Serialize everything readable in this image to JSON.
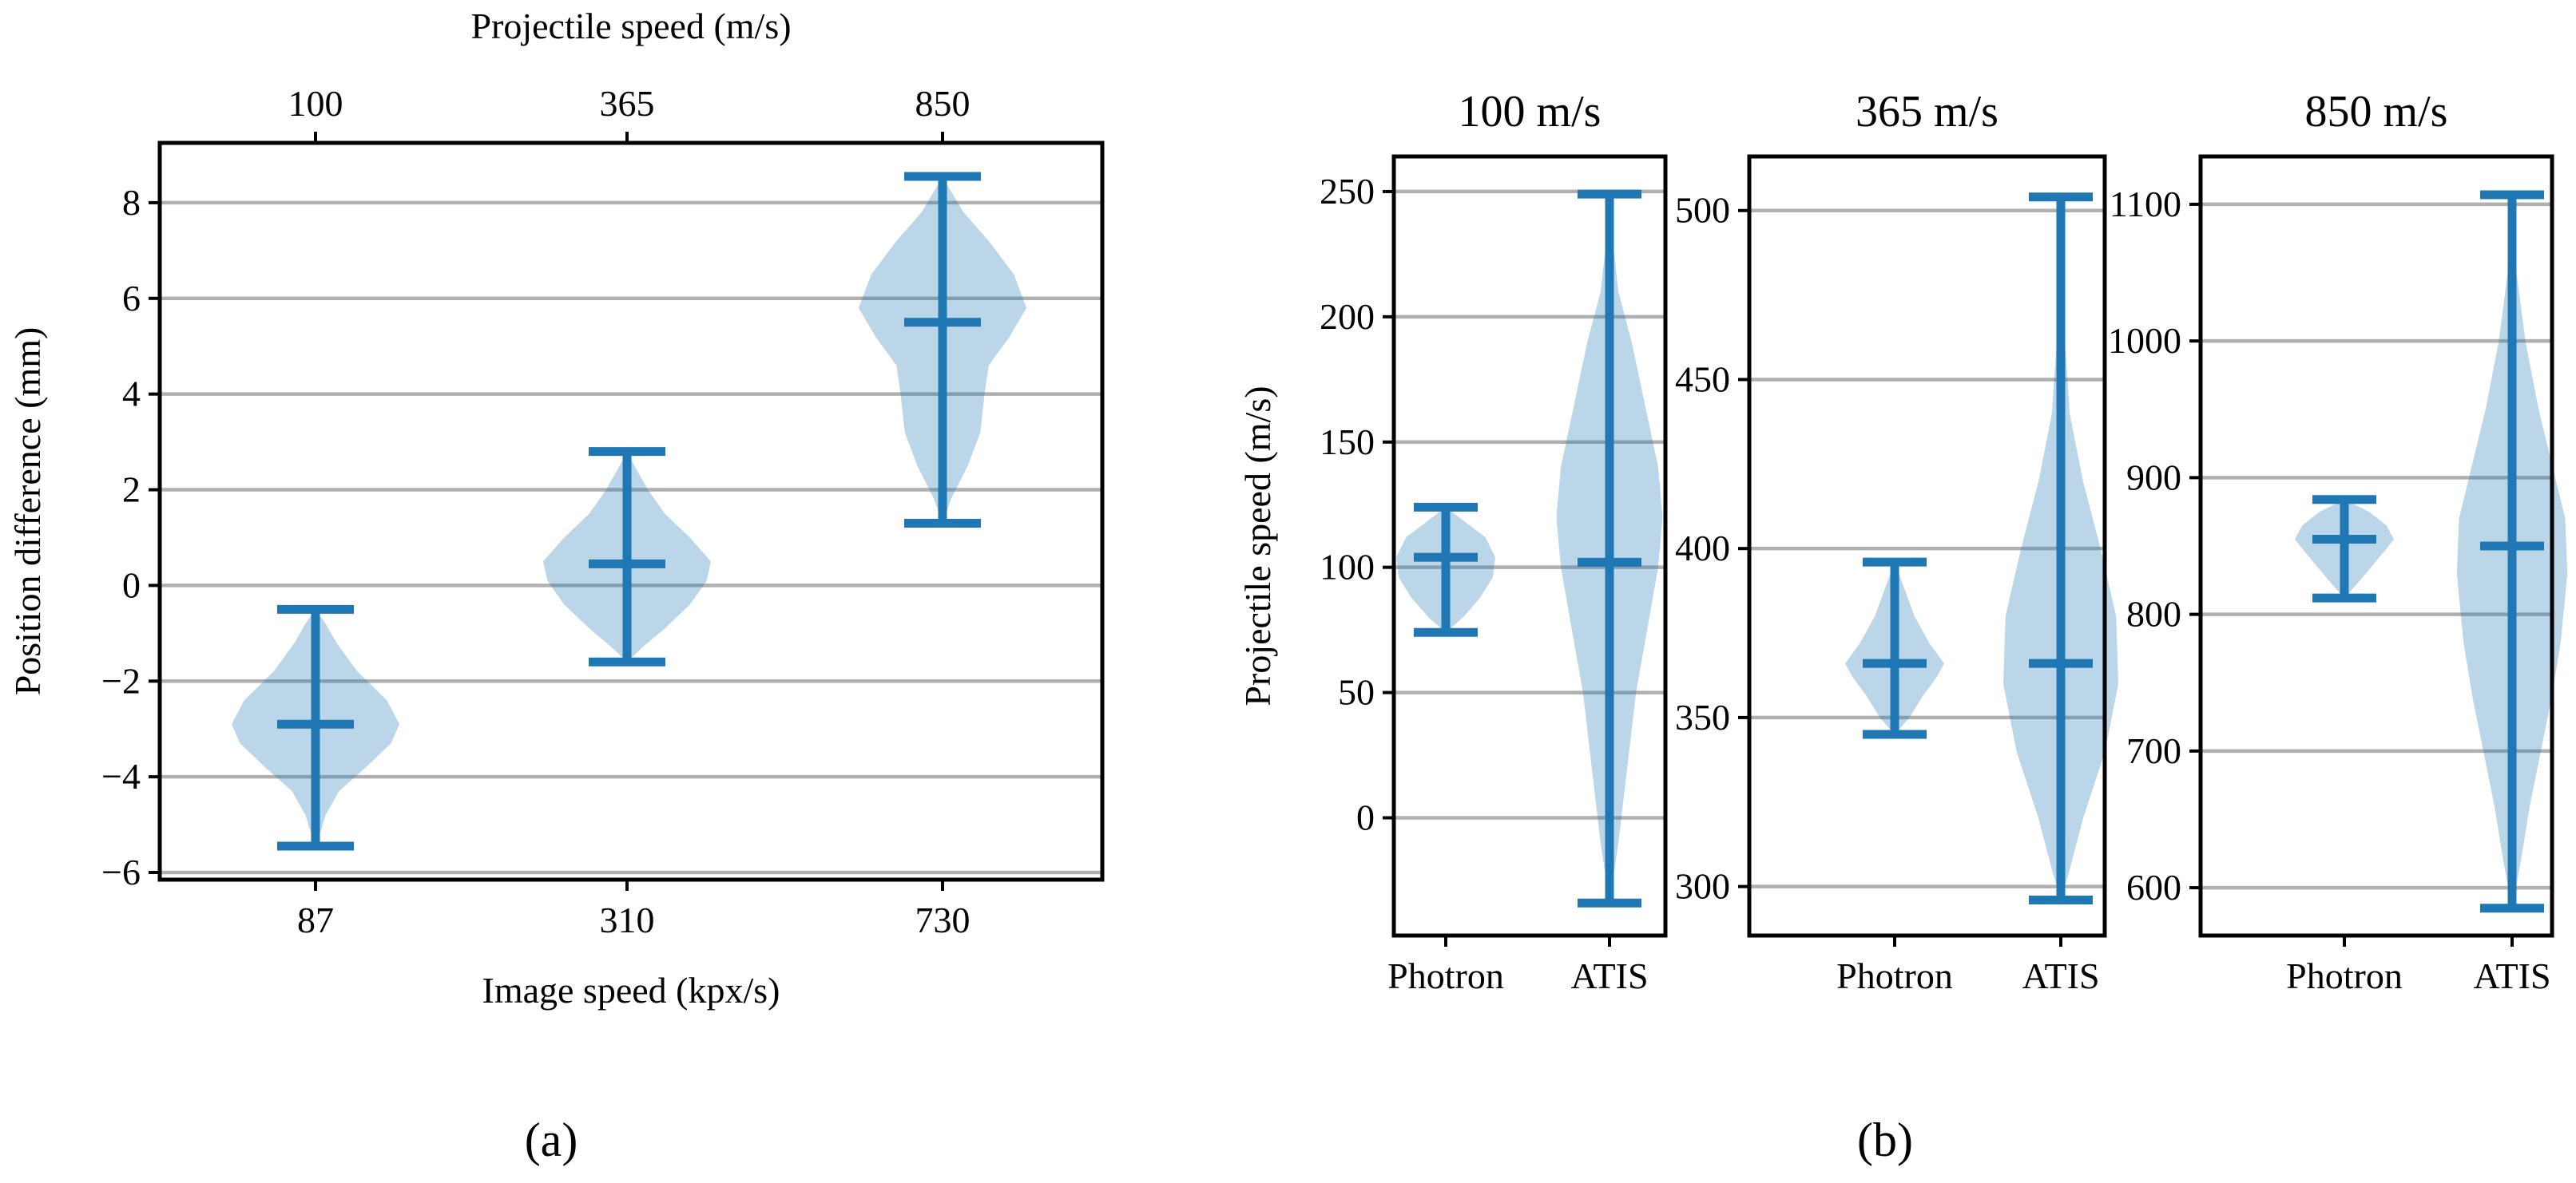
{
  "chart_data": [
    {
      "type": "violin",
      "panel": "a",
      "caption": "(a)",
      "xlabel": "Image speed (kpx/s)",
      "xlabel_top": "Projectile speed (m/s)",
      "ylabel": "Position difference (mm)",
      "ylim": [
        -6.15,
        9.25
      ],
      "yticks": [
        -6,
        -4,
        -2,
        0,
        2,
        4,
        6,
        8
      ],
      "ytick_labels": [
        "−6",
        "−4",
        "−2",
        "0",
        "2",
        "4",
        "6",
        "8"
      ],
      "categories": [
        "87",
        "310",
        "730"
      ],
      "top_categories": [
        "100",
        "365",
        "850"
      ],
      "colors": {
        "violin": "#1f77b4",
        "grid": "#b0b0b0"
      },
      "series": [
        {
          "name": "87",
          "min": -5.45,
          "median": -2.9,
          "max": -0.5,
          "profile": [
            [
              -5.45,
              0.0
            ],
            [
              -5.2,
              0.05
            ],
            [
              -4.8,
              0.12
            ],
            [
              -4.3,
              0.28
            ],
            [
              -3.8,
              0.6
            ],
            [
              -3.3,
              0.9
            ],
            [
              -2.9,
              1.0
            ],
            [
              -2.4,
              0.85
            ],
            [
              -1.8,
              0.5
            ],
            [
              -1.2,
              0.25
            ],
            [
              -0.8,
              0.12
            ],
            [
              -0.5,
              0.0
            ]
          ]
        },
        {
          "name": "310",
          "min": -1.6,
          "median": 0.45,
          "max": 2.8,
          "profile": [
            [
              -1.6,
              0.0
            ],
            [
              -1.3,
              0.18
            ],
            [
              -0.9,
              0.45
            ],
            [
              -0.4,
              0.75
            ],
            [
              0.1,
              0.95
            ],
            [
              0.5,
              1.0
            ],
            [
              1.0,
              0.75
            ],
            [
              1.5,
              0.45
            ],
            [
              2.0,
              0.25
            ],
            [
              2.4,
              0.12
            ],
            [
              2.8,
              0.0
            ]
          ]
        },
        {
          "name": "730",
          "min": 1.3,
          "median": 5.5,
          "max": 8.55,
          "profile": [
            [
              1.3,
              0.0
            ],
            [
              1.8,
              0.1
            ],
            [
              2.5,
              0.3
            ],
            [
              3.2,
              0.45
            ],
            [
              4.0,
              0.5
            ],
            [
              4.6,
              0.55
            ],
            [
              5.2,
              0.8
            ],
            [
              5.8,
              1.0
            ],
            [
              6.5,
              0.85
            ],
            [
              7.2,
              0.55
            ],
            [
              7.8,
              0.25
            ],
            [
              8.3,
              0.08
            ],
            [
              8.55,
              0.0
            ]
          ]
        }
      ]
    },
    {
      "type": "violin",
      "panel": "b1",
      "title": "100 m/s",
      "ylabel": "Projectile speed (m/s)",
      "ylim": [
        -47,
        264
      ],
      "yticks": [
        0,
        50,
        100,
        150,
        200,
        250
      ],
      "ytick_labels": [
        "0",
        "50",
        "100",
        "150",
        "200",
        "250"
      ],
      "categories": [
        "Photron",
        "ATIS"
      ],
      "series": [
        {
          "name": "Photron",
          "min": 74,
          "median": 104,
          "max": 124,
          "profile": [
            [
              74,
              0.0
            ],
            [
              80,
              0.35
            ],
            [
              88,
              0.7
            ],
            [
              96,
              0.95
            ],
            [
              104,
              1.0
            ],
            [
              112,
              0.8
            ],
            [
              118,
              0.4
            ],
            [
              124,
              0.0
            ]
          ]
        },
        {
          "name": "ATIS",
          "min": -34,
          "median": 102,
          "max": 249,
          "profile": [
            [
              -34,
              0.0
            ],
            [
              -10,
              0.04
            ],
            [
              20,
              0.08
            ],
            [
              50,
              0.12
            ],
            [
              75,
              0.17
            ],
            [
              100,
              0.22
            ],
            [
              120,
              0.24
            ],
            [
              140,
              0.22
            ],
            [
              165,
              0.16
            ],
            [
              190,
              0.1
            ],
            [
              210,
              0.04
            ],
            [
              230,
              0.015
            ],
            [
              249,
              0.0
            ]
          ]
        }
      ],
      "violin_scale": 0.28,
      "caption": "(b)"
    },
    {
      "type": "violin",
      "panel": "b2",
      "title": "365 m/s",
      "ylim": [
        285.5,
        516
      ],
      "yticks": [
        300,
        350,
        400,
        450,
        500
      ],
      "ytick_labels": [
        "300",
        "350",
        "400",
        "450",
        "500"
      ],
      "categories": [
        "Photron",
        "ATIS"
      ],
      "series": [
        {
          "name": "Photron",
          "min": 345,
          "median": 366,
          "max": 396,
          "profile": [
            [
              345,
              0.0
            ],
            [
              350,
              0.3
            ],
            [
              356,
              0.55
            ],
            [
              362,
              0.85
            ],
            [
              366,
              1.0
            ],
            [
              372,
              0.7
            ],
            [
              380,
              0.4
            ],
            [
              388,
              0.2
            ],
            [
              396,
              0.0
            ]
          ]
        },
        {
          "name": "ATIS",
          "min": 296,
          "median": 366,
          "max": 504,
          "profile": [
            [
              296,
              0.0
            ],
            [
              305,
              0.04
            ],
            [
              320,
              0.1
            ],
            [
              340,
              0.2
            ],
            [
              360,
              0.26
            ],
            [
              380,
              0.25
            ],
            [
              400,
              0.18
            ],
            [
              420,
              0.1
            ],
            [
              440,
              0.04
            ],
            [
              460,
              0.02
            ],
            [
              480,
              0.008
            ],
            [
              504,
              0.0
            ]
          ]
        }
      ],
      "violin_scale": 0.32
    },
    {
      "type": "violin",
      "panel": "b3",
      "title": "850 m/s",
      "ylim": [
        565,
        1135
      ],
      "yticks": [
        600,
        700,
        800,
        900,
        1000,
        1100
      ],
      "ytick_labels": [
        "600",
        "700",
        "800",
        "900",
        "1000",
        "1100"
      ],
      "categories": [
        "Photron",
        "ATIS"
      ],
      "series": [
        {
          "name": "Photron",
          "min": 812,
          "median": 855,
          "max": 884,
          "profile": [
            [
              812,
              0.0
            ],
            [
              822,
              0.25
            ],
            [
              835,
              0.55
            ],
            [
              848,
              0.85
            ],
            [
              855,
              1.0
            ],
            [
              865,
              0.85
            ],
            [
              875,
              0.5
            ],
            [
              884,
              0.0
            ]
          ]
        },
        {
          "name": "ATIS",
          "min": 585,
          "median": 850,
          "max": 1107,
          "profile": [
            [
              585,
              0.0
            ],
            [
              620,
              0.04
            ],
            [
              660,
              0.08
            ],
            [
              700,
              0.13
            ],
            [
              740,
              0.18
            ],
            [
              780,
              0.22
            ],
            [
              830,
              0.25
            ],
            [
              870,
              0.24
            ],
            [
              910,
              0.18
            ],
            [
              950,
              0.12
            ],
            [
              1000,
              0.06
            ],
            [
              1050,
              0.02
            ],
            [
              1107,
              0.0
            ]
          ]
        }
      ],
      "violin_scale": 0.3
    }
  ]
}
